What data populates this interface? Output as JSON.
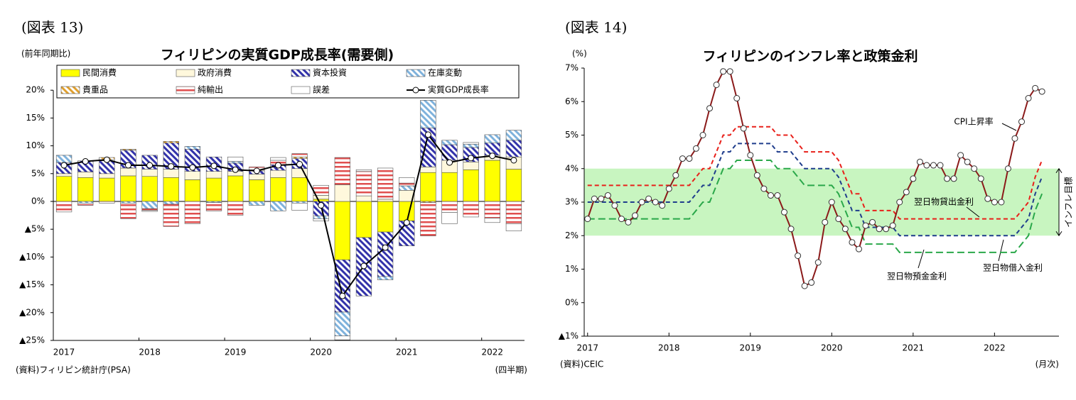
{
  "chart_data": [
    {
      "type": "bar",
      "stacked": true,
      "figure_label": "(図表 13)",
      "title": "フィリピンの実質GDP成長率(需要側)",
      "unit_label": "(前年同期比)",
      "source": "(資料)フィリピン統計庁(PSA)",
      "frequency_label": "(四半期)",
      "categories": [
        "2017",
        null,
        null,
        null,
        "2018",
        null,
        null,
        null,
        "2019",
        null,
        null,
        null,
        "2020",
        null,
        null,
        null,
        "2021",
        null,
        null,
        null,
        "2022",
        null
      ],
      "ylim": [
        -25,
        25
      ],
      "yticks": [
        {
          "value": -25,
          "label": "▲25%"
        },
        {
          "value": -20,
          "label": "▲20%"
        },
        {
          "value": -15,
          "label": "▲15%"
        },
        {
          "value": -10,
          "label": "▲10%"
        },
        {
          "value": -5,
          "label": "▲5%"
        },
        {
          "value": 0,
          "label": "0%"
        },
        {
          "value": 5,
          "label": "5%"
        },
        {
          "value": 10,
          "label": "10%"
        },
        {
          "value": 15,
          "label": "15%"
        },
        {
          "value": 20,
          "label": "20%"
        }
      ],
      "series": [
        {
          "name": "民間消費",
          "color": "#ffff00",
          "pattern": "solid",
          "values": [
            4.5,
            4.3,
            4.2,
            4.6,
            4.5,
            4.3,
            3.9,
            4.2,
            4.6,
            3.9,
            4.3,
            4.3,
            0.4,
            -10.5,
            -6.5,
            -5.5,
            -3.5,
            5.2,
            5.2,
            5.7,
            7.4,
            5.8
          ]
        },
        {
          "name": "政府消費",
          "color": "#fff8dc",
          "pattern": "solid",
          "values": [
            0.5,
            1.0,
            0.8,
            1.4,
            1.3,
            1.5,
            1.5,
            1.2,
            0.8,
            1.0,
            1.3,
            1.6,
            0.7,
            3.0,
            1.0,
            0.4,
            2.0,
            1.0,
            2.2,
            1.4,
            0.9,
            2.2
          ]
        },
        {
          "name": "資本投資",
          "color": "#3333aa",
          "pattern": "diagonal",
          "values": [
            2.0,
            2.0,
            2.3,
            3.2,
            2.5,
            4.7,
            4.0,
            2.6,
            1.5,
            0.6,
            1.0,
            1.8,
            -2.6,
            -9.4,
            -10.5,
            -8.0,
            -4.5,
            7.0,
            2.8,
            2.6,
            2.2,
            3.0
          ]
        },
        {
          "name": "在庫変動",
          "color": "#7fb2dc",
          "pattern": "diagonal",
          "values": [
            1.3,
            -0.3,
            0.2,
            -0.3,
            -1.3,
            -0.5,
            0.5,
            -0.2,
            0.3,
            -0.7,
            -1.7,
            -0.3,
            -0.5,
            -4.3,
            0.0,
            -0.6,
            0.8,
            5.0,
            0.8,
            0.6,
            1.5,
            1.8
          ]
        },
        {
          "name": "貴重品",
          "color": "#e0a030",
          "pattern": "diagonal",
          "values": [
            0,
            0,
            0.4,
            0.2,
            0,
            0.3,
            0,
            0,
            0,
            0.2,
            0,
            0.3,
            0,
            0,
            0,
            0,
            0,
            -0.2,
            0,
            0,
            0,
            0
          ]
        },
        {
          "name": "純輸出",
          "color": "#e05050",
          "pattern": "horizontal",
          "values": [
            -1.9,
            -0.4,
            -0.3,
            -2.8,
            -0.3,
            -4.0,
            -4.0,
            -1.5,
            -2.5,
            0.5,
            0.8,
            0.6,
            1.8,
            4.9,
            4.4,
            5.6,
            0.5,
            -6.0,
            -2.0,
            -2.8,
            -3.0,
            -4.0
          ]
        },
        {
          "name": "誤差",
          "color": "#ffffff",
          "pattern": "solid",
          "values": [
            0,
            0,
            0,
            0,
            -0.2,
            0,
            0,
            0,
            0.8,
            0,
            0.5,
            -1.3,
            -0.4,
            -0.7,
            0.3,
            0,
            1.0,
            0,
            -2.0,
            0.3,
            -0.8,
            -1.3
          ]
        },
        {
          "name": "実質GDP成長率",
          "color": "#000000",
          "type": "line",
          "values": [
            6.5,
            7.2,
            7.5,
            6.5,
            6.5,
            6.3,
            6.1,
            6.4,
            5.7,
            5.5,
            6.5,
            6.7,
            -0.7,
            -17.0,
            -11.6,
            -8.3,
            -3.8,
            12.0,
            7.0,
            7.8,
            8.2,
            7.4
          ]
        }
      ]
    },
    {
      "type": "line",
      "figure_label": "(図表 14)",
      "title": "フィリピンのインフレ率と政策金利",
      "unit_label": "(%)",
      "source": "(資料)CEIC",
      "frequency_label": "(月次)",
      "categories": [
        "2017",
        null,
        null,
        null,
        null,
        null,
        null,
        null,
        null,
        null,
        null,
        null,
        "2018",
        null,
        null,
        null,
        null,
        null,
        null,
        null,
        null,
        null,
        null,
        null,
        "2019",
        null,
        null,
        null,
        null,
        null,
        null,
        null,
        null,
        null,
        null,
        null,
        "2020",
        null,
        null,
        null,
        null,
        null,
        null,
        null,
        null,
        null,
        null,
        null,
        "2021",
        null,
        null,
        null,
        null,
        null,
        null,
        null,
        null,
        null,
        null,
        null,
        "2022",
        null,
        null,
        null,
        null,
        null,
        null,
        null
      ],
      "ylim": [
        -1,
        7
      ],
      "yticks": [
        {
          "value": -1,
          "label": "▲1%"
        },
        {
          "value": 0,
          "label": "0%"
        },
        {
          "value": 1,
          "label": "1%"
        },
        {
          "value": 2,
          "label": "2%"
        },
        {
          "value": 3,
          "label": "3%"
        },
        {
          "value": 4,
          "label": "4%"
        },
        {
          "value": 5,
          "label": "5%"
        },
        {
          "value": 6,
          "label": "6%"
        },
        {
          "value": 7,
          "label": "7%"
        }
      ],
      "target_band": {
        "range": [
          2,
          4
        ],
        "label": "インフレ目標",
        "color": "#c8f5c0"
      },
      "series": [
        {
          "name": "翌日物貸出金利",
          "color": "#e8201a",
          "dashed": true,
          "values": [
            3.5,
            3.5,
            3.5,
            3.5,
            3.5,
            3.5,
            3.5,
            3.5,
            3.5,
            3.5,
            3.5,
            3.5,
            3.5,
            3.5,
            3.5,
            3.5,
            3.75,
            4.0,
            4.0,
            4.5,
            5.0,
            5.0,
            5.25,
            5.25,
            5.25,
            5.25,
            5.25,
            5.25,
            5.0,
            5.0,
            5.0,
            4.75,
            4.5,
            4.5,
            4.5,
            4.5,
            4.5,
            4.25,
            3.75,
            3.25,
            3.25,
            2.75,
            2.75,
            2.75,
            2.75,
            2.75,
            2.5,
            2.5,
            2.5,
            2.5,
            2.5,
            2.5,
            2.5,
            2.5,
            2.5,
            2.5,
            2.5,
            2.5,
            2.5,
            2.5,
            2.5,
            2.5,
            2.5,
            2.5,
            2.75,
            3.0,
            3.75,
            4.25
          ]
        },
        {
          "name": "翌日物借入金利",
          "color": "#1f3d8c",
          "dashed": true,
          "values": [
            3.0,
            3.0,
            3.0,
            3.0,
            3.0,
            3.0,
            3.0,
            3.0,
            3.0,
            3.0,
            3.0,
            3.0,
            3.0,
            3.0,
            3.0,
            3.0,
            3.25,
            3.5,
            3.5,
            4.0,
            4.5,
            4.5,
            4.75,
            4.75,
            4.75,
            4.75,
            4.75,
            4.75,
            4.5,
            4.5,
            4.5,
            4.25,
            4.0,
            4.0,
            4.0,
            4.0,
            4.0,
            3.75,
            3.25,
            2.75,
            2.75,
            2.25,
            2.25,
            2.25,
            2.25,
            2.25,
            2.0,
            2.0,
            2.0,
            2.0,
            2.0,
            2.0,
            2.0,
            2.0,
            2.0,
            2.0,
            2.0,
            2.0,
            2.0,
            2.0,
            2.0,
            2.0,
            2.0,
            2.0,
            2.25,
            2.5,
            3.25,
            3.75
          ]
        },
        {
          "name": "翌日物預金金利",
          "color": "#2aa84a",
          "dashed": true,
          "values": [
            2.5,
            2.5,
            2.5,
            2.5,
            2.5,
            2.5,
            2.5,
            2.5,
            2.5,
            2.5,
            2.5,
            2.5,
            2.5,
            2.5,
            2.5,
            2.5,
            2.75,
            3.0,
            3.0,
            3.5,
            4.0,
            4.0,
            4.25,
            4.25,
            4.25,
            4.25,
            4.25,
            4.25,
            4.0,
            4.0,
            4.0,
            3.75,
            3.5,
            3.5,
            3.5,
            3.5,
            3.5,
            3.25,
            2.75,
            2.25,
            2.25,
            1.75,
            1.75,
            1.75,
            1.75,
            1.75,
            1.5,
            1.5,
            1.5,
            1.5,
            1.5,
            1.5,
            1.5,
            1.5,
            1.5,
            1.5,
            1.5,
            1.5,
            1.5,
            1.5,
            1.5,
            1.5,
            1.5,
            1.5,
            1.75,
            2.0,
            2.75,
            3.25
          ]
        },
        {
          "name": "CPI上昇率",
          "color": "#8b1a1a",
          "markers": true,
          "values": [
            2.5,
            3.1,
            3.1,
            3.2,
            2.9,
            2.5,
            2.4,
            2.6,
            3.0,
            3.1,
            3.0,
            2.9,
            3.4,
            3.8,
            4.3,
            4.3,
            4.6,
            5.0,
            5.8,
            6.5,
            6.9,
            6.9,
            6.1,
            5.2,
            4.4,
            3.8,
            3.4,
            3.2,
            3.2,
            2.7,
            2.2,
            1.4,
            0.5,
            0.6,
            1.2,
            2.4,
            3.0,
            2.5,
            2.2,
            1.8,
            1.6,
            2.3,
            2.4,
            2.2,
            2.2,
            2.3,
            3.0,
            3.3,
            3.7,
            4.2,
            4.1,
            4.1,
            4.1,
            3.7,
            3.7,
            4.4,
            4.2,
            4.0,
            3.7,
            3.1,
            3.0,
            3.0,
            4.0,
            4.9,
            5.4,
            6.1,
            6.4,
            6.3
          ]
        }
      ]
    }
  ]
}
